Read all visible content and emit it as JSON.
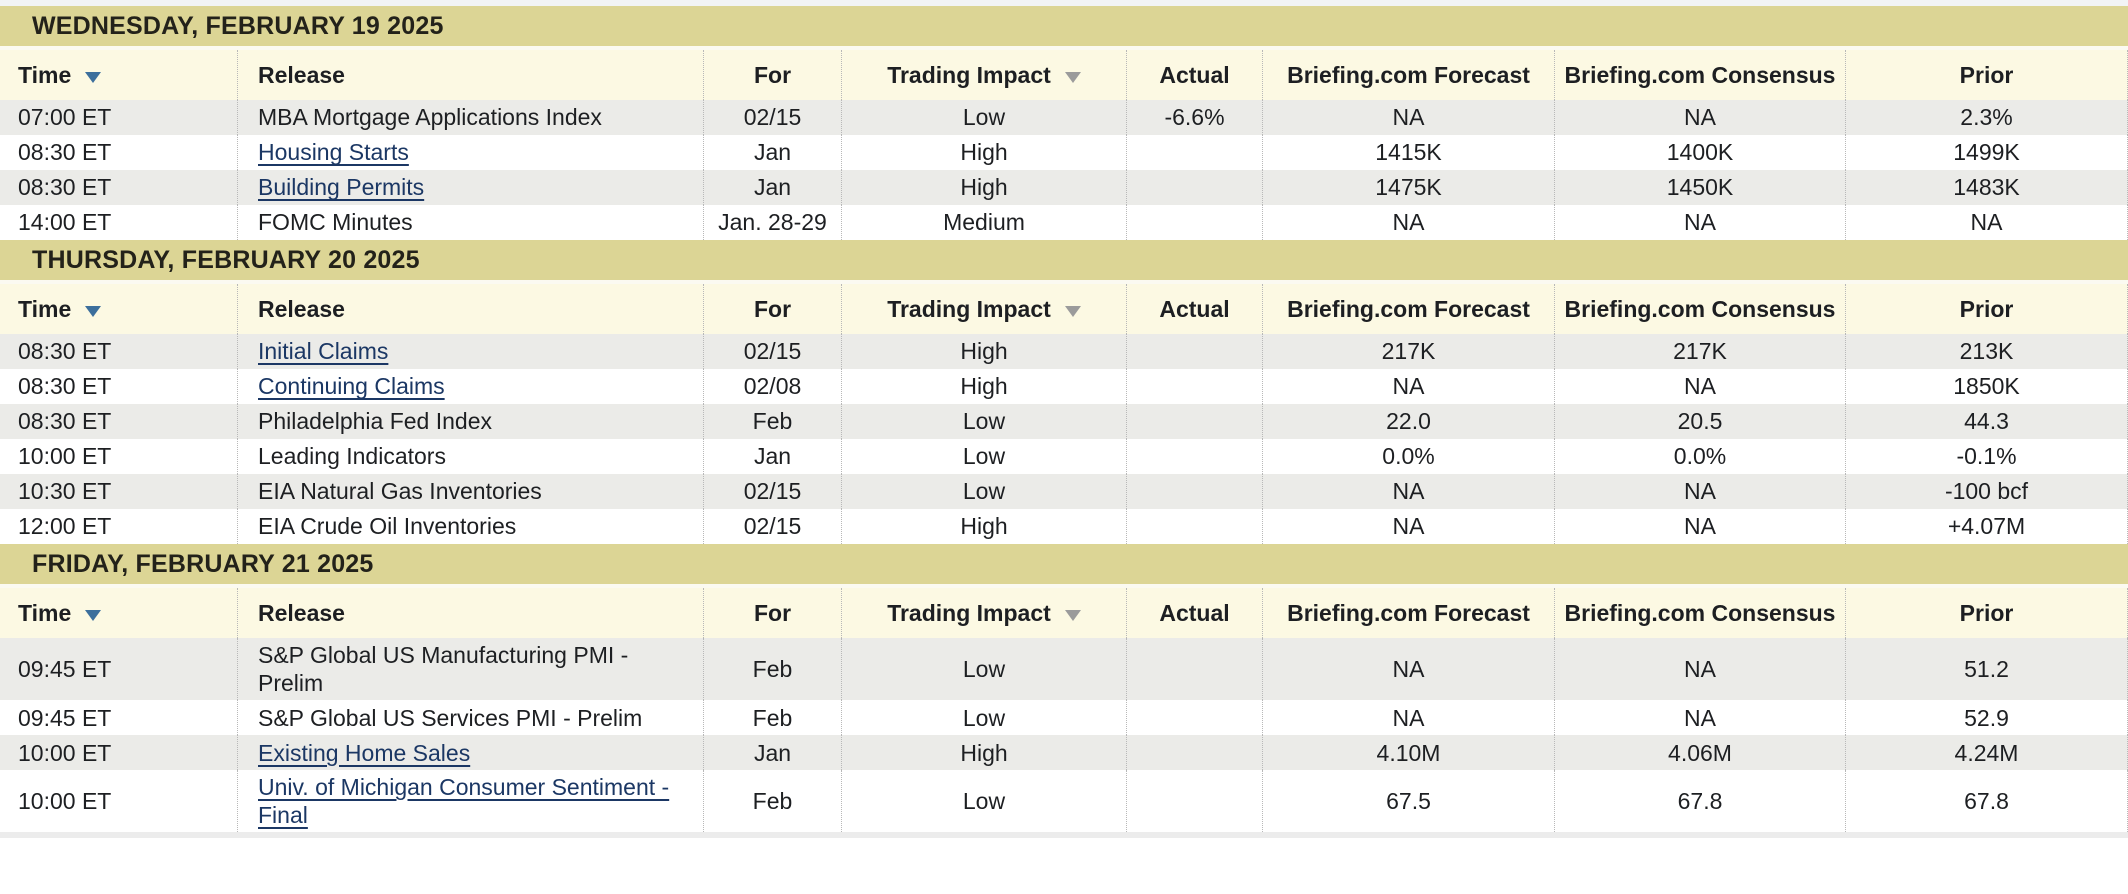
{
  "table": {
    "columns": [
      {
        "key": "time",
        "label": "Time",
        "align": "left",
        "sortable": true,
        "arrow_icon": "sort-down-arrow-icon",
        "arrow_color": "#3c6f9c"
      },
      {
        "key": "release",
        "label": "Release",
        "align": "left",
        "sortable": false
      },
      {
        "key": "for",
        "label": "For",
        "align": "center",
        "sortable": false
      },
      {
        "key": "impact",
        "label": "Trading Impact",
        "align": "center",
        "sortable": true,
        "arrow_icon": "sort-down-arrow-icon",
        "arrow_color": "#9b9b9b"
      },
      {
        "key": "actual",
        "label": "Actual",
        "align": "center",
        "sortable": false
      },
      {
        "key": "forecast",
        "label": "Briefing.com Forecast",
        "align": "center",
        "sortable": false
      },
      {
        "key": "consensus",
        "label": "Briefing.com Consensus",
        "align": "center",
        "sortable": false
      },
      {
        "key": "prior",
        "label": "Prior",
        "align": "center",
        "sortable": false
      }
    ],
    "sections": [
      {
        "date": "WEDNESDAY, FEBRUARY 19 2025",
        "rows": [
          {
            "time": "07:00 ET",
            "release": "MBA Mortgage Applications Index",
            "is_link": false,
            "for": "02/15",
            "impact": "Low",
            "actual": "-6.6%",
            "forecast": "NA",
            "consensus": "NA",
            "prior": "2.3%"
          },
          {
            "time": "08:30 ET",
            "release": "Housing Starts",
            "is_link": true,
            "for": "Jan",
            "impact": "High",
            "actual": "",
            "forecast": "1415K",
            "consensus": "1400K",
            "prior": "1499K"
          },
          {
            "time": "08:30 ET",
            "release": "Building Permits",
            "is_link": true,
            "for": "Jan",
            "impact": "High",
            "actual": "",
            "forecast": "1475K",
            "consensus": "1450K",
            "prior": "1483K"
          },
          {
            "time": "14:00 ET",
            "release": "FOMC Minutes",
            "is_link": false,
            "for": "Jan. 28-29",
            "impact": "Medium",
            "actual": "",
            "forecast": "NA",
            "consensus": "NA",
            "prior": "NA"
          }
        ]
      },
      {
        "date": "THURSDAY, FEBRUARY 20 2025",
        "rows": [
          {
            "time": "08:30 ET",
            "release": "Initial Claims",
            "is_link": true,
            "for": "02/15",
            "impact": "High",
            "actual": "",
            "forecast": "217K",
            "consensus": "217K",
            "prior": "213K"
          },
          {
            "time": "08:30 ET",
            "release": "Continuing Claims",
            "is_link": true,
            "for": "02/08",
            "impact": "High",
            "actual": "",
            "forecast": "NA",
            "consensus": "NA",
            "prior": "1850K"
          },
          {
            "time": "08:30 ET",
            "release": "Philadelphia Fed Index",
            "is_link": false,
            "for": "Feb",
            "impact": "Low",
            "actual": "",
            "forecast": "22.0",
            "consensus": "20.5",
            "prior": "44.3"
          },
          {
            "time": "10:00 ET",
            "release": "Leading Indicators",
            "is_link": false,
            "for": "Jan",
            "impact": "Low",
            "actual": "",
            "forecast": "0.0%",
            "consensus": "0.0%",
            "prior": "-0.1%"
          },
          {
            "time": "10:30 ET",
            "release": "EIA Natural Gas Inventories",
            "is_link": false,
            "for": "02/15",
            "impact": "Low",
            "actual": "",
            "forecast": "NA",
            "consensus": "NA",
            "prior": "-100 bcf"
          },
          {
            "time": "12:00 ET",
            "release": "EIA Crude Oil Inventories",
            "is_link": false,
            "for": "02/15",
            "impact": "High",
            "actual": "",
            "forecast": "NA",
            "consensus": "NA",
            "prior": "+4.07M"
          }
        ]
      },
      {
        "date": "FRIDAY, FEBRUARY 21 2025",
        "rows": [
          {
            "time": "09:45 ET",
            "release": "S&P Global US Manufacturing PMI - Prelim",
            "is_link": false,
            "for": "Feb",
            "impact": "Low",
            "actual": "",
            "forecast": "NA",
            "consensus": "NA",
            "prior": "51.2"
          },
          {
            "time": "09:45 ET",
            "release": "S&P Global US Services PMI - Prelim",
            "is_link": false,
            "for": "Feb",
            "impact": "Low",
            "actual": "",
            "forecast": "NA",
            "consensus": "NA",
            "prior": "52.9"
          },
          {
            "time": "10:00 ET",
            "release": "Existing Home Sales",
            "is_link": true,
            "for": "Jan",
            "impact": "High",
            "actual": "",
            "forecast": "4.10M",
            "consensus": "4.06M",
            "prior": "4.24M"
          },
          {
            "time": "10:00 ET",
            "release": "Univ. of Michigan Consumer Sentiment - Final",
            "is_link": true,
            "for": "Feb",
            "impact": "Low",
            "actual": "",
            "forecast": "67.5",
            "consensus": "67.8",
            "prior": "67.8"
          }
        ]
      }
    ]
  },
  "colors": {
    "date_band_bg": "#dcd595",
    "header_row_bg": "#fcf9e3",
    "striped_row_bg": "#ebebe8",
    "plain_row_bg": "#ffffff",
    "link_text": "#1b3764",
    "sort_arrow_blue": "#3c6f9c",
    "sort_arrow_gray": "#9b9b9b",
    "text": "#1d1f22"
  }
}
